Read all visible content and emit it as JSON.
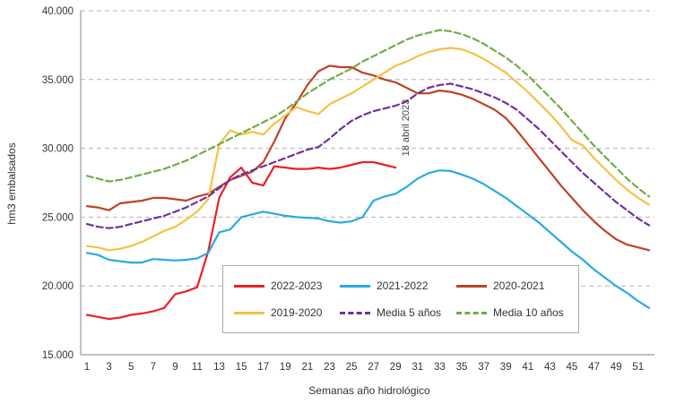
{
  "chart_data": {
    "type": "line",
    "title": "",
    "xlabel": "Semanas año hidrológico",
    "ylabel": "hm3 embalsados",
    "xlim": [
      1,
      52
    ],
    "ylim": [
      15000,
      40000
    ],
    "grid": "horizontal-dashed",
    "legend_position": "boxed-bottom-center",
    "y_ticks": [
      {
        "value": 15000,
        "label": "15.000"
      },
      {
        "value": 20000,
        "label": "20.000"
      },
      {
        "value": 25000,
        "label": "25.000"
      },
      {
        "value": 30000,
        "label": "30.000"
      },
      {
        "value": 35000,
        "label": "35.000"
      },
      {
        "value": 40000,
        "label": "40.000"
      }
    ],
    "x_ticks": [
      1,
      3,
      5,
      7,
      9,
      11,
      13,
      15,
      17,
      19,
      21,
      23,
      25,
      27,
      29,
      31,
      33,
      35,
      37,
      39,
      41,
      43,
      45,
      47,
      49,
      51
    ],
    "annotation": {
      "text": "18 abril 2023",
      "week": 30.2,
      "value": 31500,
      "rotation": -90
    },
    "series": [
      {
        "name": "2022-2023",
        "color": "#ee2024",
        "dashed": false,
        "values": [
          17900,
          17750,
          17600,
          17700,
          17900,
          18000,
          18150,
          18400,
          19400,
          19600,
          19900,
          22500,
          26400,
          27900,
          28600,
          27500,
          27300,
          28700,
          28600,
          28500,
          28500,
          28600,
          28500,
          28600,
          28800,
          29000,
          29000,
          28800,
          28600,
          null,
          null,
          null,
          null,
          null,
          null,
          null,
          null,
          null,
          null,
          null,
          null,
          null,
          null,
          null,
          null,
          null,
          null,
          null,
          null,
          null,
          null,
          null
        ]
      },
      {
        "name": "2021-2022",
        "color": "#29abe2",
        "dashed": false,
        "values": [
          22400,
          22250,
          21900,
          21800,
          21700,
          21700,
          21950,
          21900,
          21850,
          21900,
          22000,
          22400,
          23900,
          24100,
          25000,
          25200,
          25400,
          25250,
          25100,
          25000,
          24950,
          24900,
          24700,
          24600,
          24700,
          25000,
          26200,
          26500,
          26700,
          27200,
          27800,
          28200,
          28400,
          28350,
          28100,
          27800,
          27400,
          26900,
          26400,
          25800,
          25200,
          24600,
          23900,
          23200,
          22500,
          21900,
          21200,
          20600,
          20000,
          19500,
          18900,
          18400
        ]
      },
      {
        "name": "2020-2021",
        "color": "#bf4226",
        "dashed": false,
        "values": [
          25800,
          25700,
          25500,
          26000,
          26100,
          26200,
          26400,
          26400,
          26300,
          26200,
          26500,
          26700,
          27200,
          27700,
          28000,
          28300,
          29000,
          30500,
          32200,
          33300,
          34600,
          35600,
          36000,
          35900,
          35900,
          35500,
          35300,
          35000,
          34800,
          34400,
          34000,
          34000,
          34200,
          34100,
          33900,
          33600,
          33200,
          32800,
          32200,
          31300,
          30300,
          29300,
          28300,
          27300,
          26400,
          25500,
          24700,
          24000,
          23400,
          23000,
          22800,
          22600
        ]
      },
      {
        "name": "2019-2020",
        "color": "#f6c142",
        "dashed": false,
        "values": [
          22900,
          22800,
          22600,
          22700,
          22900,
          23200,
          23600,
          24000,
          24300,
          24800,
          25400,
          26300,
          30300,
          31300,
          31000,
          31200,
          31000,
          31800,
          32400,
          33000,
          32700,
          32500,
          33200,
          33600,
          34000,
          34500,
          35000,
          35500,
          36000,
          36300,
          36700,
          37000,
          37200,
          37300,
          37200,
          36900,
          36500,
          36000,
          35500,
          34800,
          34100,
          33300,
          32500,
          31600,
          30600,
          30200,
          29300,
          28500,
          27700,
          27000,
          26400,
          25900
        ]
      },
      {
        "name": "Media 5 años",
        "color": "#7030a0",
        "dashed": true,
        "values": [
          24500,
          24300,
          24200,
          24300,
          24500,
          24700,
          24900,
          25100,
          25400,
          25700,
          26100,
          26500,
          27100,
          27700,
          28100,
          28400,
          28700,
          29000,
          29300,
          29600,
          29900,
          30100,
          30700,
          31400,
          32000,
          32400,
          32700,
          32900,
          33100,
          33400,
          34000,
          34400,
          34600,
          34700,
          34500,
          34300,
          34000,
          33700,
          33300,
          32800,
          32100,
          31400,
          30600,
          29800,
          29000,
          28200,
          27500,
          26800,
          26100,
          25500,
          24900,
          24400
        ]
      },
      {
        "name": "Media 10 años",
        "color": "#6fae45",
        "dashed": true,
        "values": [
          28000,
          27800,
          27600,
          27700,
          27900,
          28100,
          28300,
          28500,
          28800,
          29100,
          29500,
          29900,
          30300,
          30700,
          31100,
          31500,
          31900,
          32300,
          32800,
          33400,
          34000,
          34500,
          35000,
          35400,
          35800,
          36300,
          36700,
          37100,
          37500,
          37900,
          38200,
          38400,
          38600,
          38500,
          38300,
          38000,
          37600,
          37100,
          36600,
          36000,
          35300,
          34500,
          33700,
          32900,
          32000,
          31100,
          30200,
          29400,
          28600,
          27800,
          27100,
          26500
        ]
      }
    ]
  }
}
